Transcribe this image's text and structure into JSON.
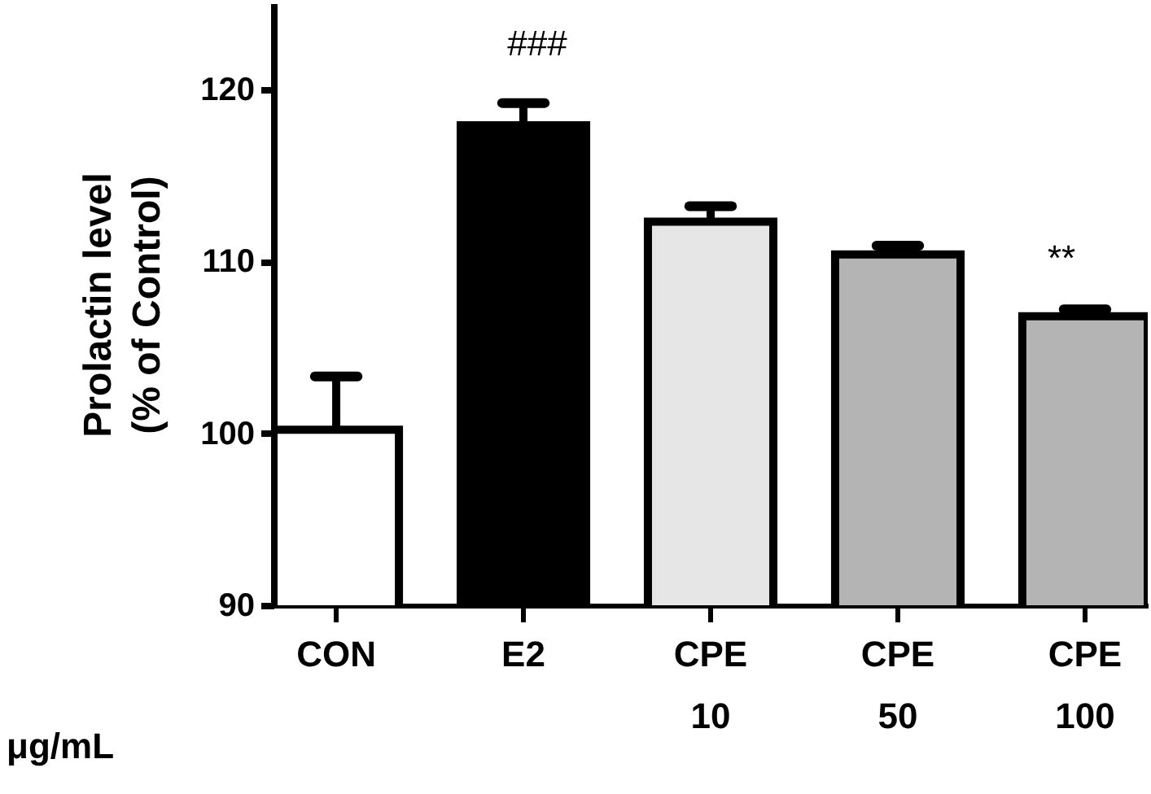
{
  "chart_data": {
    "type": "bar",
    "ylabel": "Prolactin level\n(% of Control)",
    "categories": [
      "CON",
      "E2",
      "CPE\n10",
      "CPE\n50",
      "CPE\n100"
    ],
    "values": [
      100.2,
      117.9,
      112.3,
      110.4,
      106.8
    ],
    "errors": [
      3.1,
      1.3,
      0.9,
      0.5,
      0.4
    ],
    "colors": [
      "#ffffff",
      "#000000",
      "#e6e6e6",
      "#b4b4b4",
      "#b4b4b4"
    ],
    "ylim": [
      90,
      125
    ],
    "yticks": [
      90,
      100,
      110,
      120
    ],
    "annotations": [
      "###",
      "**",
      "μg/mL"
    ],
    "grid": false
  }
}
